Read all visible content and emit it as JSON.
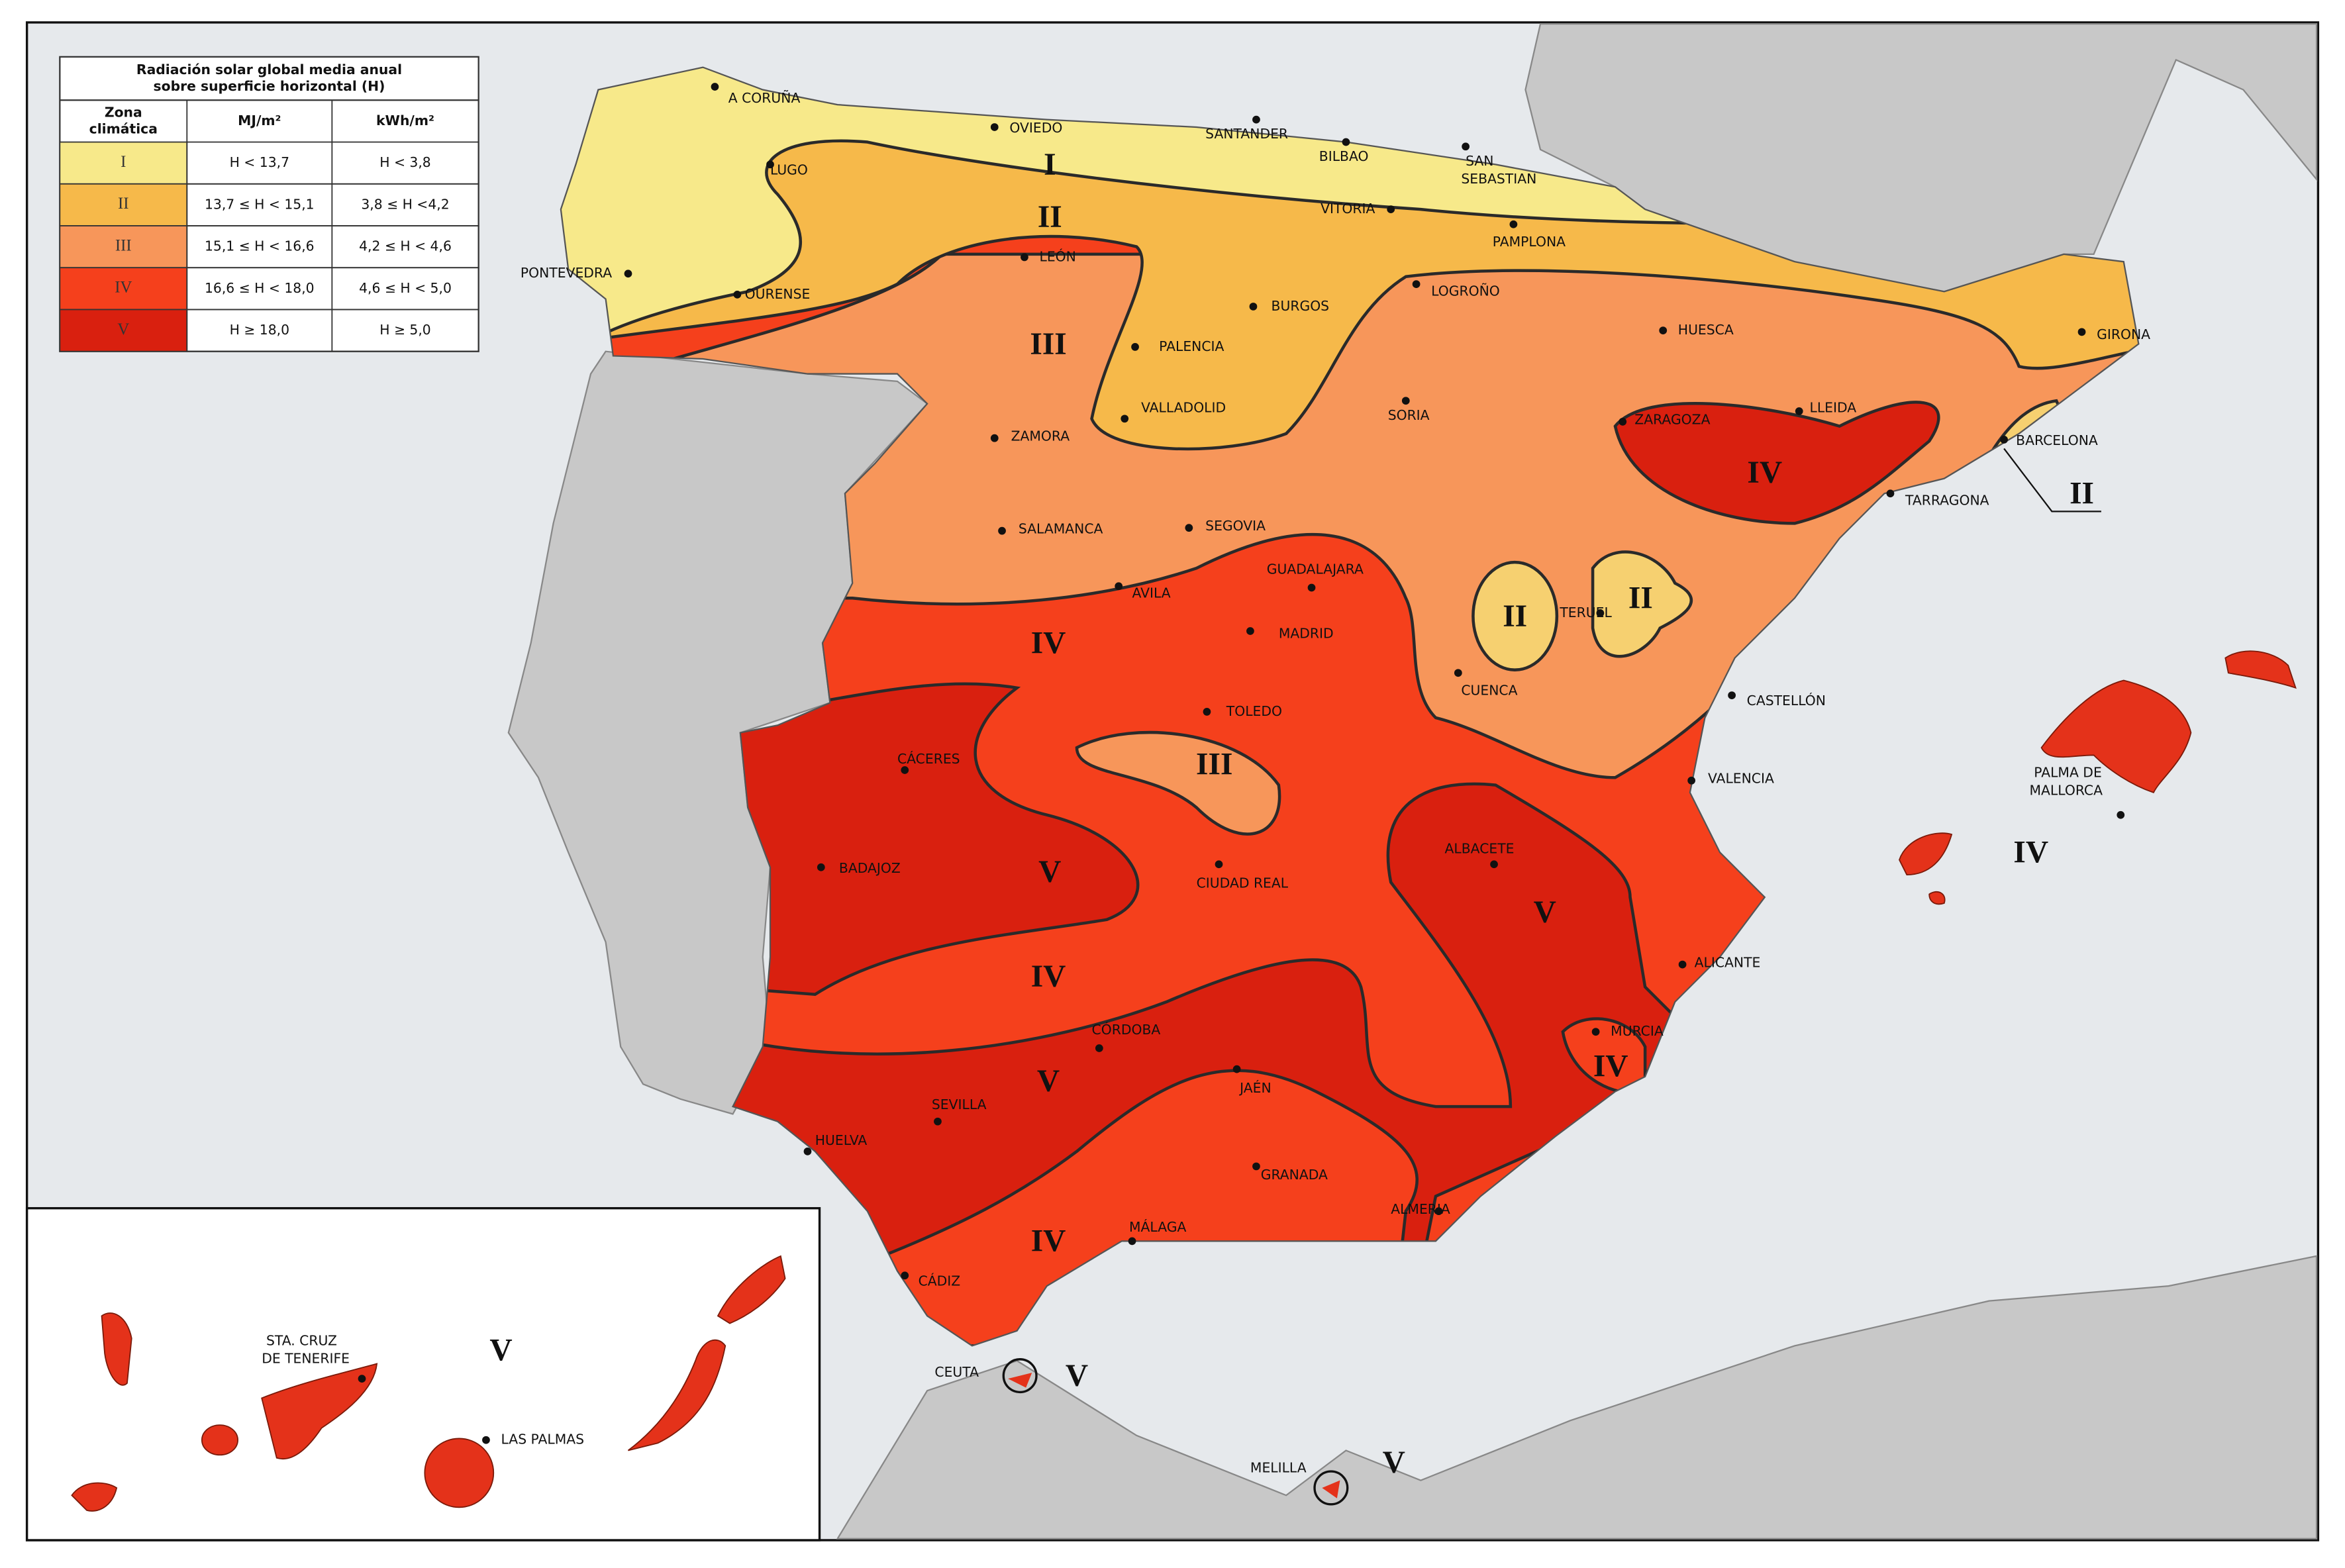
{
  "legend": {
    "title": [
      "Radiación solar global media anual",
      "sobre superficie horizontal (H)"
    ],
    "headers": [
      [
        "Zona",
        "climática"
      ],
      [
        "MJ/m²"
      ],
      [
        "kWh/m²"
      ]
    ],
    "rows": [
      [
        "I",
        "H < 13,7",
        "H < 3,8"
      ],
      [
        "II",
        "13,7 ≤ H < 15,1",
        "3,8 ≤ H <4,2"
      ],
      [
        "III",
        "15,1 ≤ H < 16,6",
        "4,2 ≤ H < 4,6"
      ],
      [
        "IV",
        "16,6 ≤ H < 18,0",
        "4,6 ≤ H < 5,0"
      ],
      [
        "V",
        "H ≥ 18,0",
        "H ≥ 5,0"
      ]
    ]
  },
  "cities": [
    [
      "A CORUÑA"
    ],
    [
      "OVIEDO"
    ],
    [
      "SANTANDER"
    ],
    [
      "BILBAO"
    ],
    [
      "SAN",
      "SEBASTIAN"
    ],
    [
      "LUGO"
    ],
    [
      "VITORIA"
    ],
    [
      "PAMPLONA"
    ],
    [
      "LEÓN"
    ],
    [
      "PONTEVEDRA"
    ],
    [
      "OURENSE"
    ],
    [
      "LOGROÑO"
    ],
    [
      "BURGOS"
    ],
    [
      "HUESCA"
    ],
    [
      "GIRONA"
    ],
    [
      "PALENCIA"
    ],
    [
      "VALLADOLID"
    ],
    [
      "SORIA"
    ],
    [
      "ZARAGOZA"
    ],
    [
      "LLEIDA"
    ],
    [
      "ZAMORA"
    ],
    [
      "BARCELONA"
    ],
    [
      "TARRAGONA"
    ],
    [
      "SALAMANCA"
    ],
    [
      "SEGOVIA"
    ],
    [
      "GUADALAJARA"
    ],
    [
      "AVILA"
    ],
    [
      "TERUEL"
    ],
    [
      "MADRID"
    ],
    [
      "CUENCA"
    ],
    [
      "CASTELLÓN"
    ],
    [
      "TOLEDO"
    ],
    [
      "CÁCERES"
    ],
    [
      "VALENCIA"
    ],
    [
      "PALMA DE",
      "MALLORCA"
    ],
    [
      "ALBACETE"
    ],
    [
      "BADAJOZ"
    ],
    [
      "CIUDAD REAL"
    ],
    [
      "ALICANTE"
    ],
    [
      "CÓRDOBA"
    ],
    [
      "MURCIA"
    ],
    [
      "JAÉN"
    ],
    [
      "SEVILLA"
    ],
    [
      "HUELVA"
    ],
    [
      "GRANADA"
    ],
    [
      "ALMERIA"
    ],
    [
      "MÁLAGA"
    ],
    [
      "CÁDIZ"
    ],
    [
      "CEUTA"
    ],
    [
      "MELILLA"
    ],
    [
      "STA. CRUZ",
      "DE TENERIFE"
    ],
    [
      "LAS PALMAS"
    ]
  ],
  "zone_labels": [
    "I",
    "II",
    "III",
    "II",
    "IV",
    "II",
    "II",
    "IV",
    "III",
    "V",
    "IV",
    "V",
    "IV",
    "IV",
    "V",
    "IV",
    "V",
    "V",
    "V"
  ]
}
